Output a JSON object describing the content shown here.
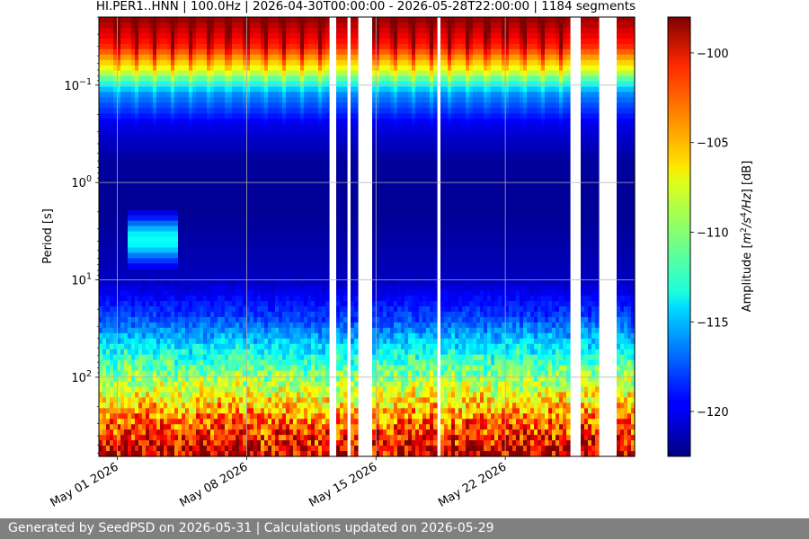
{
  "chart_data": {
    "type": "heatmap",
    "title": "HI.PER1..HNN | 100.0Hz | 2026-04-30T00:00:00 - 2026-05-28T22:00:00 | 1184 segments",
    "xlabel": "",
    "ylabel": "Period [s]",
    "y_scale": "log",
    "x_range": [
      "2026-04-30",
      "2026-05-29"
    ],
    "y_range_s": [
      0.02,
      650
    ],
    "x_ticks": [
      {
        "date": "2026-05-01",
        "label": "May 01 2026"
      },
      {
        "date": "2026-05-08",
        "label": "May 08 2026"
      },
      {
        "date": "2026-05-15",
        "label": "May 15 2026"
      },
      {
        "date": "2026-05-22",
        "label": "May 22 2026"
      }
    ],
    "y_ticks": [
      {
        "value": 0.1,
        "base": "10",
        "exp": "−1"
      },
      {
        "value": 1,
        "base": "10",
        "exp": "0"
      },
      {
        "value": 10,
        "base": "10",
        "exp": "1"
      },
      {
        "value": 100,
        "base": "10",
        "exp": "2"
      }
    ],
    "grid": true,
    "colormap": "jet",
    "colorbar": {
      "label_parts": [
        "Amplitude [",
        "m",
        "2",
        "/s",
        "4",
        "/Hz",
        "] [dB]"
      ],
      "range_db": [
        -122.5,
        -98
      ],
      "ticks": [
        -100,
        -105,
        -110,
        -115,
        -120
      ],
      "tick_labels": [
        "−100",
        "−105",
        "−110",
        "−115",
        "−120"
      ]
    },
    "data_gaps": [
      [
        "2026-05-12 12:00",
        "2026-05-12 18:00"
      ],
      [
        "2026-05-13 09:00",
        "2026-05-13 15:00"
      ],
      [
        "2026-05-14 00:00",
        "2026-05-14 21:00"
      ],
      [
        "2026-05-18 09:00",
        "2026-05-18 12:00"
      ],
      [
        "2026-05-25 14:00",
        "2026-05-26 04:00"
      ],
      [
        "2026-05-26 23:00",
        "2026-05-27 23:00"
      ]
    ],
    "daily_noise_peaks": [
      "2026-05-01",
      "2026-05-02",
      "2026-05-03",
      "2026-05-04",
      "2026-05-05",
      "2026-05-06",
      "2026-05-07",
      "2026-05-08",
      "2026-05-09",
      "2026-05-10",
      "2026-05-11",
      "2026-05-12",
      "2026-05-15",
      "2026-05-16",
      "2026-05-17",
      "2026-05-18",
      "2026-05-19",
      "2026-05-20",
      "2026-05-21",
      "2026-05-22",
      "2026-05-23",
      "2026-05-24",
      "2026-05-25"
    ],
    "elevated_band": {
      "start": "2026-05-01",
      "end": "2026-05-04",
      "period_range_s": [
        2.5,
        6
      ],
      "level_db": -113
    },
    "amplitude_profile_db": [
      {
        "period_s": 0.02,
        "db": -98.5
      },
      {
        "period_s": 0.04,
        "db": -102
      },
      {
        "period_s": 0.07,
        "db": -108
      },
      {
        "period_s": 0.12,
        "db": -116
      },
      {
        "period_s": 0.25,
        "db": -120
      },
      {
        "period_s": 0.6,
        "db": -121.8
      },
      {
        "period_s": 2,
        "db": -122
      },
      {
        "period_s": 10,
        "db": -121
      },
      {
        "period_s": 25,
        "db": -118
      },
      {
        "period_s": 60,
        "db": -113
      },
      {
        "period_s": 150,
        "db": -108
      },
      {
        "period_s": 350,
        "db": -103
      },
      {
        "period_s": 650,
        "db": -100
      }
    ]
  },
  "footer": {
    "text": "Generated by SeedPSD on 2026-05-31 | Calculations updated on 2026-05-29"
  }
}
